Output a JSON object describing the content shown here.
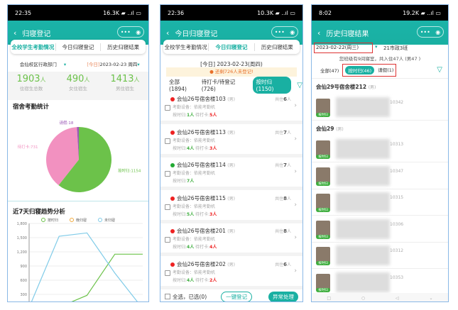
{
  "colors": {
    "teal": "#19b0a2",
    "green": "#6cc24a",
    "pink": "#f291c0",
    "purple": "#9b59b6",
    "blue": "#7fcbe8",
    "orange": "#f0a93b",
    "red": "#e22222"
  },
  "panel1": {
    "time": "22:35",
    "signal": "16.3K ▰ ..ıl ▭",
    "title": "归寝登记",
    "tabs": [
      "全校学生考勤情况",
      "今日归寝登记",
      "历史归寝结果"
    ],
    "active_tab": 0,
    "dept": "会仙校区行政部门",
    "date_prefix": "[今日]",
    "date": "2023-02-23",
    "weekday": "周四",
    "stats": [
      {
        "value": "1903",
        "unit": "人",
        "label": "住宿生总数"
      },
      {
        "value": "490",
        "unit": "人",
        "label": "女住宿生"
      },
      {
        "value": "1413",
        "unit": "人",
        "label": "男住宿生"
      }
    ],
    "pie_title": "宿舍考勤统计",
    "trend_title": "近7天归寝趋势分析"
  },
  "chart_data": [
    {
      "type": "pie",
      "title": "宿舍考勤统计",
      "slices": [
        {
          "name": "按时归",
          "value": 1154,
          "label": "按时归:1154"
        },
        {
          "name": "待打卡",
          "value": 731,
          "label": "待打卡:731"
        },
        {
          "name": "请假",
          "value": 18,
          "label": "请假:18"
        }
      ]
    },
    {
      "type": "line",
      "title": "近7天归寝趋势分析",
      "legend": "top",
      "grid": true,
      "ylim": [
        0,
        1800
      ],
      "yticks": [
        "300",
        "600",
        "900",
        "1,200",
        "1,500",
        "1,800"
      ],
      "yticks_values": [
        300,
        600,
        900,
        1200,
        1500,
        1800
      ],
      "series": [
        {
          "name": "按时归",
          "values": [
            0,
            30,
            280,
            1150,
            1150
          ]
        },
        {
          "name": "晚归寝",
          "values": [
            0,
            0,
            0,
            0,
            0
          ]
        },
        {
          "name": "未归寝",
          "values": [
            130,
            1530,
            1600,
            750,
            0
          ]
        }
      ]
    }
  ],
  "panel2": {
    "time": "22:36",
    "signal": "10.3K ▰ ..ıl ▭",
    "title": "今日归寝登记",
    "tabs": [
      "全校学生考勤情况",
      "今日归寝登记",
      "历史归寝结果"
    ],
    "active_tab": 1,
    "date": "[今日] 2023-02-23(周四)",
    "warning": "还剩726人未登记!",
    "filters": [
      "全部(1894)",
      "待打卡/待登记(726)",
      "按时归(1150)"
    ],
    "rooms": [
      {
        "name": "会仙26号宿舍楼103",
        "sex": "(男)",
        "total": "6",
        "device": "考勤设备：依能考勤机",
        "ontime": "1人",
        "pending": "5人",
        "status": "red"
      },
      {
        "name": "会仙26号宿舍楼113",
        "sex": "(男)",
        "total": "7",
        "device": "考勤设备：依能考勤机",
        "ontime": "4人",
        "pending": "3人",
        "status": "red"
      },
      {
        "name": "会仙26号宿舍楼114",
        "sex": "(男)",
        "total": "7",
        "device": "考勤设备：依能考勤机",
        "ontime": "7人",
        "pending": "",
        "status": "green"
      },
      {
        "name": "会仙26号宿舍楼115",
        "sex": "(男)",
        "total": "8",
        "device": "考勤设备：依能考勤机",
        "ontime": "5人",
        "pending": "3人",
        "status": "red"
      },
      {
        "name": "会仙26号宿舍楼201",
        "sex": "(男)",
        "total": "8",
        "device": "考勤设备：依能考勤机",
        "ontime": "4人",
        "pending": "4人",
        "status": "red"
      },
      {
        "name": "会仙26号宿舍楼202",
        "sex": "(男)",
        "total": "6",
        "device": "考勤设备：依能考勤机",
        "ontime": "4人",
        "pending": "2人",
        "status": "red"
      }
    ],
    "labels": {
      "total_prefix": "共住",
      "ontime": "按时归:",
      "pending": "待打卡:"
    },
    "select_all": "全选，已选(0)",
    "one_click": "一键登记",
    "exception": "异常处理"
  },
  "panel3": {
    "time": "8:02",
    "signal": "19.2K ▰ ..ıl ▭",
    "title": "历史归寝结果",
    "date": "2023-02-22(周三)",
    "class": "21市政3班",
    "summary": "您班级有9间寝室，共入住47人 (男47 )",
    "filters": [
      "全部(47)",
      "按时归(46)",
      "请假(1)"
    ],
    "groups": [
      "会仙29号宿舍楼212",
      "会仙29"
    ],
    "group_sex": "(男)",
    "badge": "按时归",
    "students": [
      "10342",
      "10313",
      "10347",
      "10315",
      "10306",
      "10312",
      "10353"
    ]
  }
}
